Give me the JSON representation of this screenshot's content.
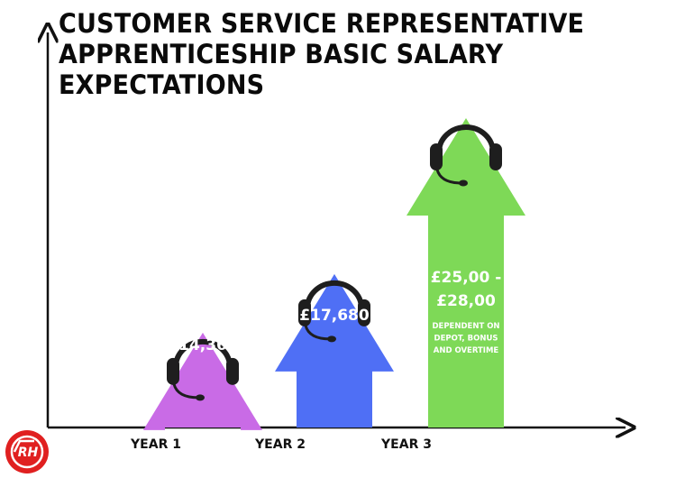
{
  "colors": {
    "year1": "#c96be6",
    "year2": "#4f6ff5",
    "year3": "#7ed957",
    "text_on_bar": "#ffffff",
    "axis": "#111111",
    "logo": "#e02020",
    "headset": "#1e1e1e"
  },
  "logo": {
    "icon": "rh-logo-icon",
    "text": "RH"
  },
  "chart_data": {
    "type": "bar",
    "title_lines": [
      "CUSTOMER SERVICE REPRESENTATIVE",
      "APPRENTICESHIP BASIC SALARY",
      "EXPECTATIONS"
    ],
    "categories": [
      "YEAR 1",
      "YEAR 2",
      "YEAR 3"
    ],
    "values": [
      14365,
      17680,
      26500
    ],
    "value_labels": [
      [
        "£14,365"
      ],
      [
        "£17,680"
      ],
      [
        "£25,00 -",
        "£28,00"
      ]
    ],
    "notes": [
      "",
      "",
      "DEPENDENT ON DEPOT, BONUS AND OVERTIME"
    ],
    "note_lines": [
      [],
      [],
      [
        "DEPENDENT ON",
        "DEPOT, BONUS",
        "AND OVERTIME"
      ]
    ],
    "mark": "arrow with headset",
    "xlabel": "",
    "ylabel": "",
    "grid": false,
    "legend": "none"
  }
}
